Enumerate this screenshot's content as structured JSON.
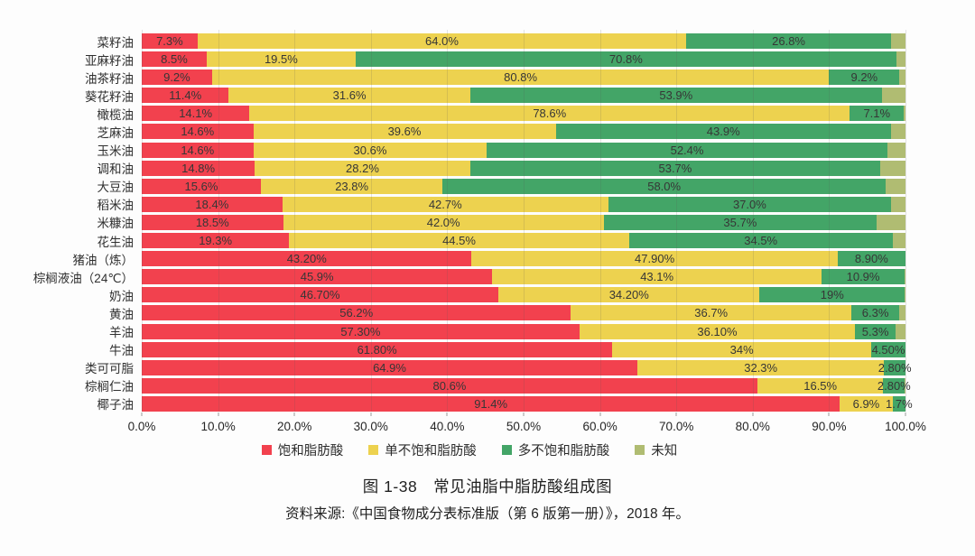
{
  "figure": {
    "caption": "图 1-38　常见油脂中脂肪酸组成图",
    "source": "资料来源:《中国食物成分表标准版（第 6 版第一册）》，2018 年。"
  },
  "chart_data": {
    "type": "bar",
    "orientation": "horizontal-stacked",
    "title": "图 1-38 常见油脂中脂肪酸组成图",
    "xlabel": "",
    "ylabel": "",
    "xlim": [
      0,
      100
    ],
    "grid": true,
    "legend_position": "bottom",
    "x_axis": {
      "ticks": [
        "0.0%",
        "10.0%",
        "20.0%",
        "30.0%",
        "40.0%",
        "50.0%",
        "60.0%",
        "70.0%",
        "80.0%",
        "90.0%",
        "100.0%"
      ],
      "tick_values": [
        0,
        10,
        20,
        30,
        40,
        50,
        60,
        70,
        80,
        90,
        100
      ]
    },
    "legend": [
      {
        "key": "saturated",
        "name": "饱和脂肪酸",
        "color": "#f2414e"
      },
      {
        "key": "monounsaturated",
        "name": "单不饱和脂肪酸",
        "color": "#edd24f"
      },
      {
        "key": "polyunsaturated",
        "name": "多不饱和脂肪酸",
        "color": "#43a567"
      },
      {
        "key": "unknown",
        "name": "未知",
        "color": "#b0bc72"
      }
    ],
    "rows": [
      {
        "name": "菜籽油",
        "values": [
          7.3,
          64.0,
          26.8,
          1.9
        ],
        "labels": [
          "7.3%",
          "64.0%",
          "26.8%",
          ""
        ]
      },
      {
        "name": "亚麻籽油",
        "values": [
          8.5,
          19.5,
          70.8,
          1.2
        ],
        "labels": [
          "8.5%",
          "19.5%",
          "70.8%",
          ""
        ]
      },
      {
        "name": "油茶籽油",
        "values": [
          9.2,
          80.8,
          9.2,
          0.8
        ],
        "labels": [
          "9.2%",
          "80.8%",
          "9.2%",
          ""
        ]
      },
      {
        "name": "葵花籽油",
        "values": [
          11.4,
          31.6,
          53.9,
          3.1
        ],
        "labels": [
          "11.4%",
          "31.6%",
          "53.9%",
          ""
        ]
      },
      {
        "name": "橄榄油",
        "values": [
          14.1,
          78.6,
          7.1,
          0.2
        ],
        "labels": [
          "14.1%",
          "78.6%",
          "7.1%",
          ""
        ]
      },
      {
        "name": "芝麻油",
        "values": [
          14.6,
          39.6,
          43.9,
          1.9
        ],
        "labels": [
          "14.6%",
          "39.6%",
          "43.9%",
          ""
        ]
      },
      {
        "name": "玉米油",
        "values": [
          14.6,
          30.6,
          52.4,
          2.4
        ],
        "labels": [
          "14.6%",
          "30.6%",
          "52.4%",
          ""
        ]
      },
      {
        "name": "调和油",
        "values": [
          14.8,
          28.2,
          53.7,
          3.3
        ],
        "labels": [
          "14.8%",
          "28.2%",
          "53.7%",
          ""
        ]
      },
      {
        "name": "大豆油",
        "values": [
          15.6,
          23.8,
          58.0,
          2.6
        ],
        "labels": [
          "15.6%",
          "23.8%",
          "58.0%",
          ""
        ]
      },
      {
        "name": "稻米油",
        "values": [
          18.4,
          42.7,
          37.0,
          1.9
        ],
        "labels": [
          "18.4%",
          "42.7%",
          "37.0%",
          ""
        ]
      },
      {
        "name": "米糠油",
        "values": [
          18.5,
          42.0,
          35.7,
          3.8
        ],
        "labels": [
          "18.5%",
          "42.0%",
          "35.7%",
          ""
        ]
      },
      {
        "name": "花生油",
        "values": [
          19.3,
          44.5,
          34.5,
          1.7
        ],
        "labels": [
          "19.3%",
          "44.5%",
          "34.5%",
          ""
        ]
      },
      {
        "name": "猪油（炼）",
        "values": [
          43.2,
          47.9,
          8.9,
          0.0
        ],
        "labels": [
          "43.20%",
          "47.90%",
          "8.90%",
          ""
        ]
      },
      {
        "name": "棕榈液油（24℃）",
        "values": [
          45.9,
          43.1,
          10.9,
          0.1
        ],
        "labels": [
          "45.9%",
          "43.1%",
          "10.9%",
          ""
        ]
      },
      {
        "name": "奶油",
        "values": [
          46.7,
          34.2,
          19.0,
          0.1
        ],
        "labels": [
          "46.70%",
          "34.20%",
          "19%",
          ""
        ]
      },
      {
        "name": "黄油",
        "values": [
          56.2,
          36.7,
          6.3,
          0.8
        ],
        "labels": [
          "56.2%",
          "36.7%",
          "6.3%",
          ""
        ]
      },
      {
        "name": "羊油",
        "values": [
          57.3,
          36.1,
          5.3,
          1.3
        ],
        "labels": [
          "57.30%",
          "36.10%",
          "5.3%",
          ""
        ]
      },
      {
        "name": "牛油",
        "values": [
          61.8,
          34.0,
          4.5,
          0.0
        ],
        "labels": [
          "61.80%",
          "34%",
          "4.50%",
          ""
        ]
      },
      {
        "name": "类可可脂",
        "values": [
          64.9,
          32.3,
          2.8,
          0.0
        ],
        "labels": [
          "64.9%",
          "32.3%",
          "2.80%",
          ""
        ]
      },
      {
        "name": "棕榈仁油",
        "values": [
          80.6,
          16.5,
          2.8,
          0.1
        ],
        "labels": [
          "80.6%",
          "16.5%",
          "2.80%",
          ""
        ]
      },
      {
        "name": "椰子油",
        "values": [
          91.4,
          6.9,
          1.7,
          0.0
        ],
        "labels": [
          "91.4%",
          "6.9%",
          "1.7%",
          ""
        ]
      }
    ]
  }
}
